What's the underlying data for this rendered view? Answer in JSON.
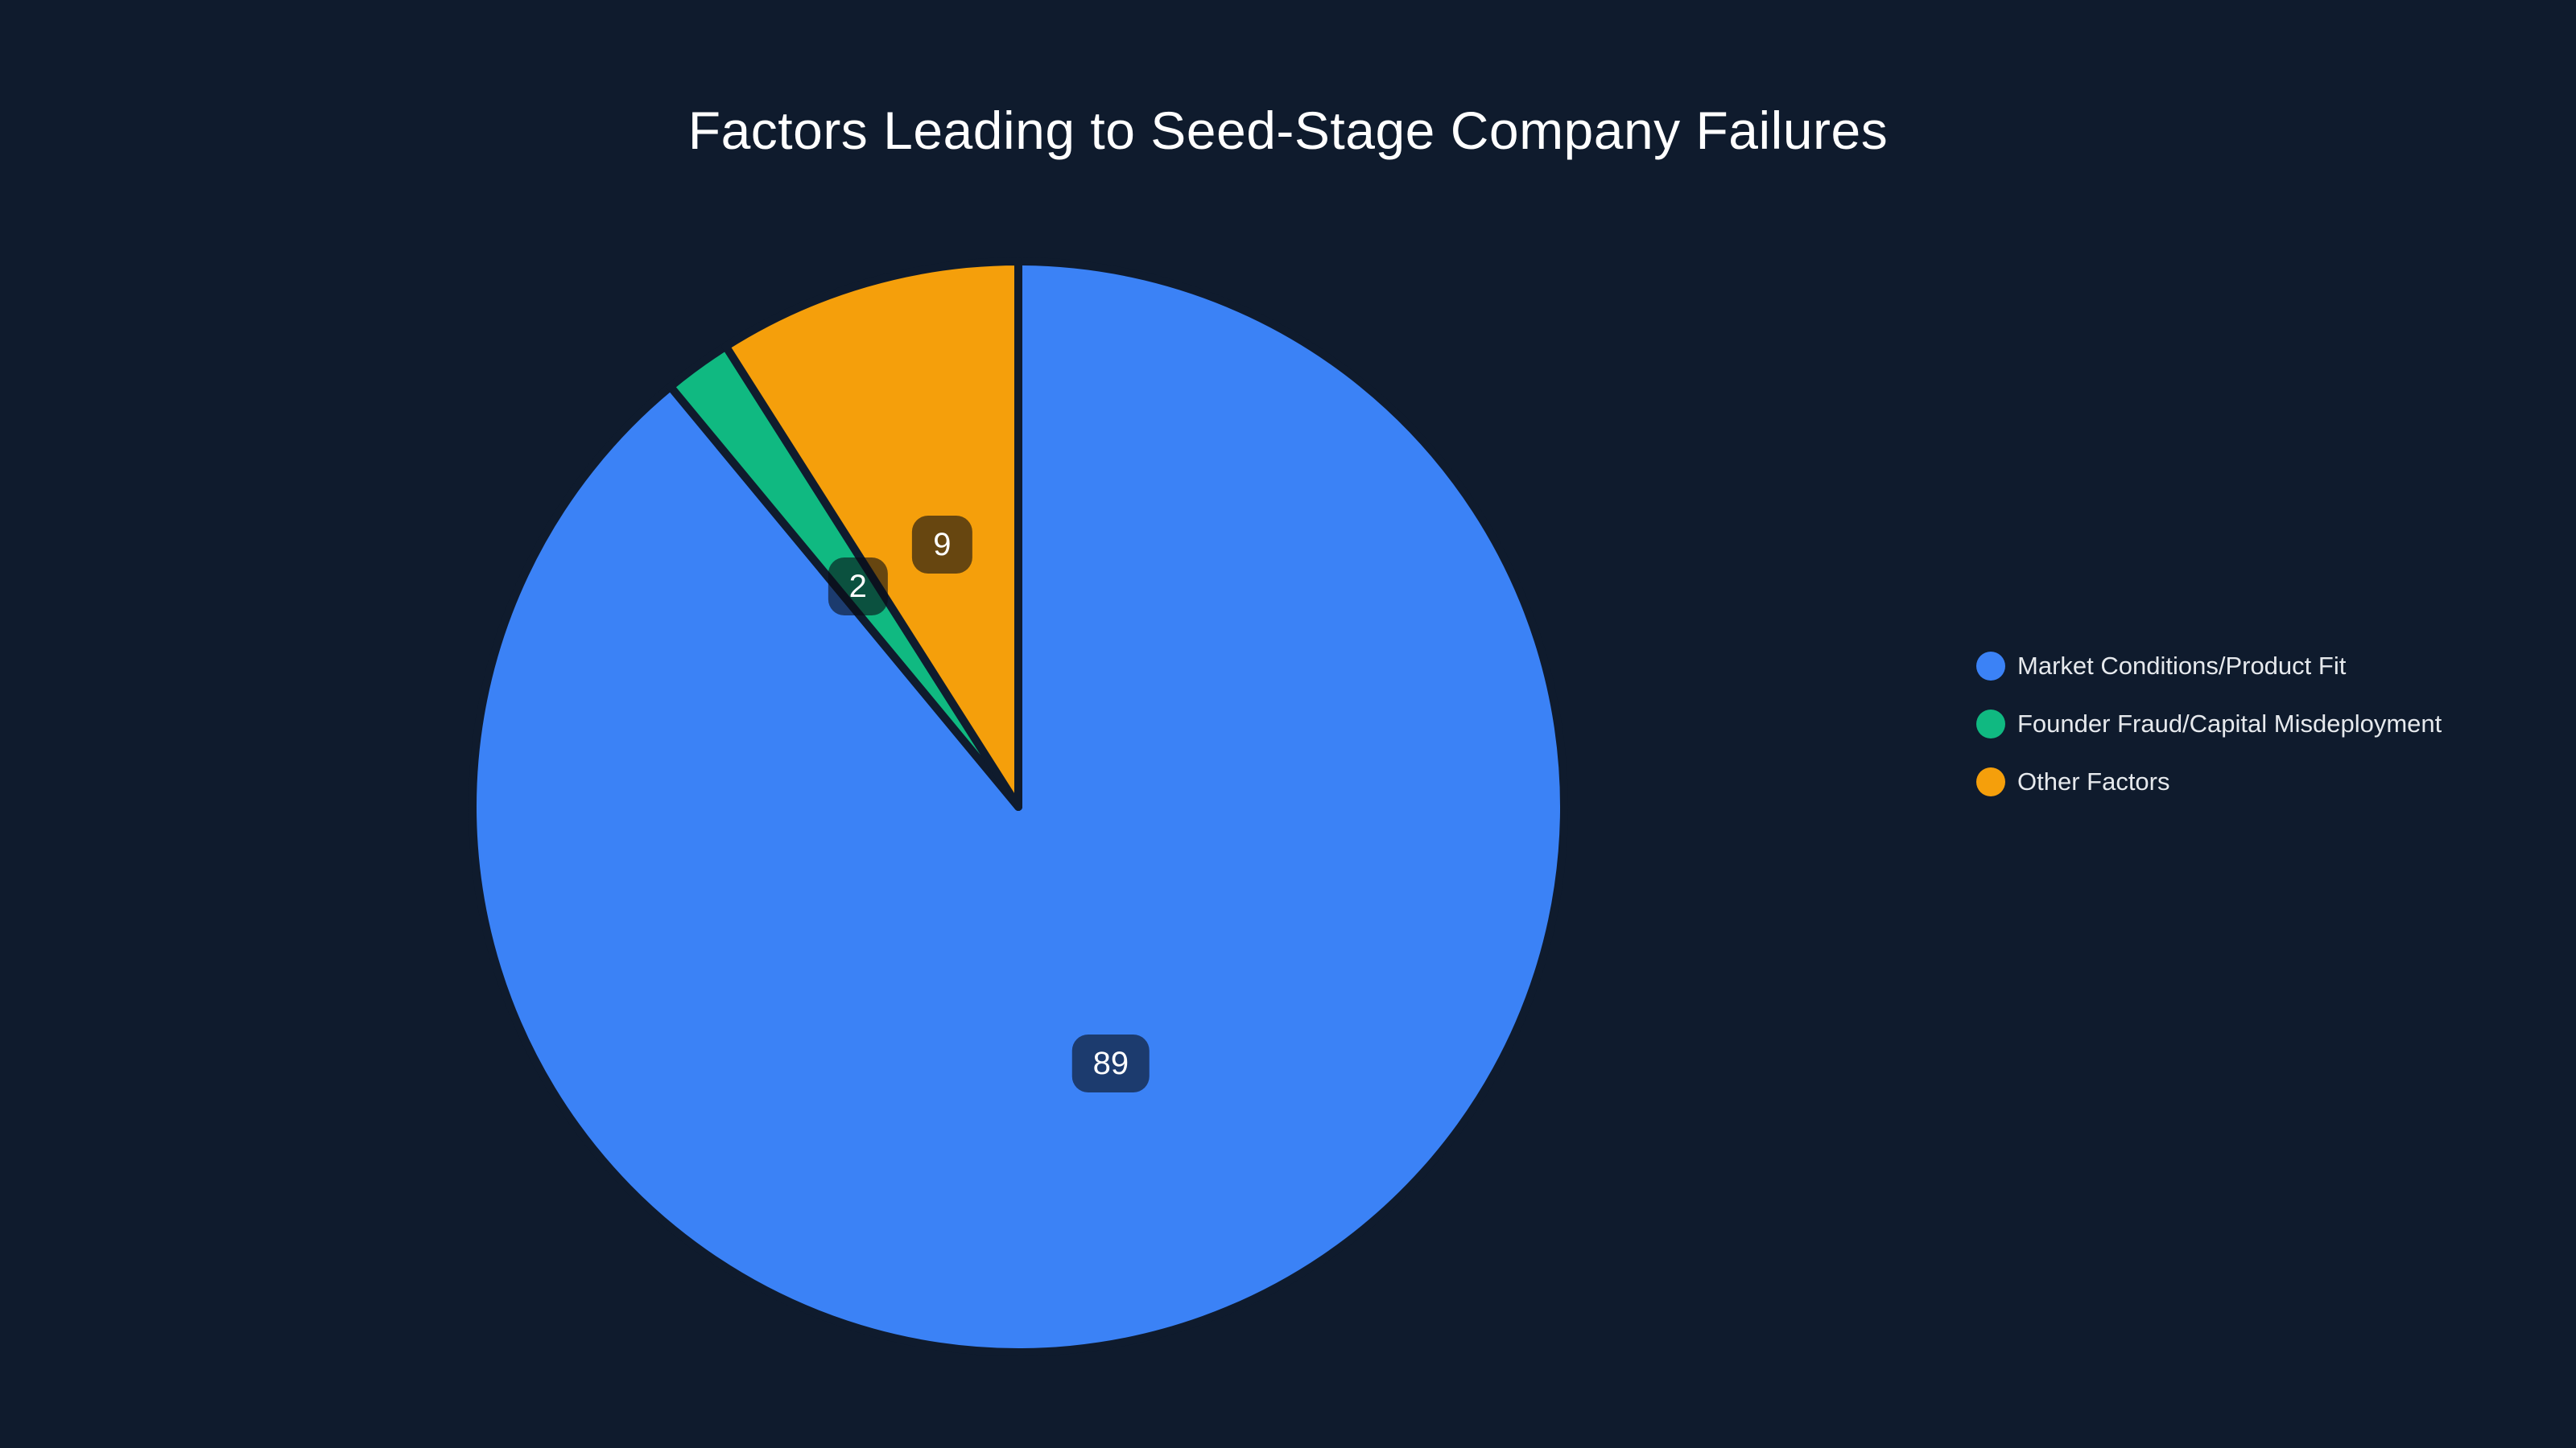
{
  "chart_data": {
    "type": "pie",
    "title": "Factors Leading to Seed-Stage Company Failures",
    "slices": [
      {
        "label": "Market Conditions/Product Fit",
        "value": 89,
        "color": "#3b82f6"
      },
      {
        "label": "Founder Fraud/Capital Misdeployment",
        "value": 2,
        "color": "#10b981"
      },
      {
        "label": "Other Factors",
        "value": 9,
        "color": "#f59f0b"
      }
    ],
    "total": 100,
    "start_angle": "top",
    "direction": "clockwise",
    "legend_position": "right",
    "value_labels": "shown in dark rounded boxes at mid-radius of each slice"
  },
  "colors": {
    "background": "#0f1b2d",
    "title_text": "#ffffff",
    "legend_text": "#e6e9ed",
    "label_box_bg": "rgba(8,12,20,0.6)",
    "label_text": "#ffffff",
    "slice_gap": "#0f1b2d"
  }
}
